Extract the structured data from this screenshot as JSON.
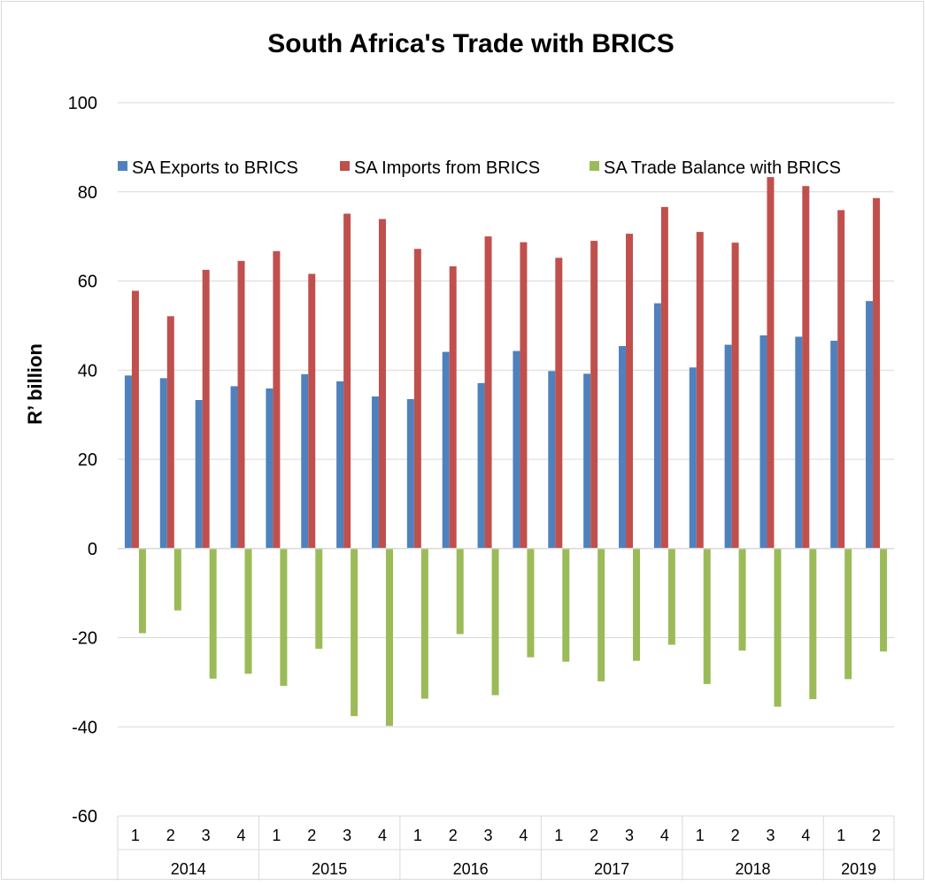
{
  "chart_data": {
    "type": "bar",
    "title": "South Africa's Trade with BRICS",
    "ylabel": "R’ billion",
    "xlabel": "",
    "ylim": [
      -60,
      100
    ],
    "yticks": [
      -60,
      -40,
      -20,
      0,
      20,
      40,
      60,
      80,
      100
    ],
    "grid": true,
    "legend_position": "top",
    "categories": [
      "1",
      "2",
      "3",
      "4",
      "1",
      "2",
      "3",
      "4",
      "1",
      "2",
      "3",
      "4",
      "1",
      "2",
      "3",
      "4",
      "1",
      "2",
      "3",
      "4",
      "1",
      "2"
    ],
    "groups": [
      {
        "label": "2014",
        "count": 4
      },
      {
        "label": "2015",
        "count": 4
      },
      {
        "label": "2016",
        "count": 4
      },
      {
        "label": "2017",
        "count": 4
      },
      {
        "label": "2018",
        "count": 4
      },
      {
        "label": "2019",
        "count": 2
      }
    ],
    "series": [
      {
        "name": "SA Exports to BRICS",
        "color": "#4F81BD",
        "values": [
          38.8,
          38.2,
          33.3,
          36.4,
          35.9,
          39.1,
          37.5,
          34.1,
          33.5,
          44.1,
          37.1,
          44.3,
          39.8,
          39.2,
          45.4,
          55.0,
          40.6,
          45.7,
          47.8,
          47.5,
          46.6,
          55.5
        ]
      },
      {
        "name": "SA Imports from BRICS",
        "color": "#C0504D",
        "values": [
          57.8,
          52.1,
          62.5,
          64.5,
          66.7,
          61.6,
          75.1,
          73.9,
          67.2,
          63.3,
          70.0,
          68.7,
          65.2,
          69.0,
          70.6,
          76.6,
          71.0,
          68.6,
          83.3,
          81.3,
          75.9,
          78.6
        ]
      },
      {
        "name": "SA Trade Balance with BRICS",
        "color": "#9BBB59",
        "values": [
          -19.0,
          -13.9,
          -29.2,
          -28.1,
          -30.8,
          -22.5,
          -37.6,
          -39.8,
          -33.7,
          -19.2,
          -32.9,
          -24.4,
          -25.4,
          -29.8,
          -25.2,
          -21.6,
          -30.4,
          -22.9,
          -35.5,
          -33.8,
          -29.3,
          -23.1
        ]
      }
    ]
  }
}
